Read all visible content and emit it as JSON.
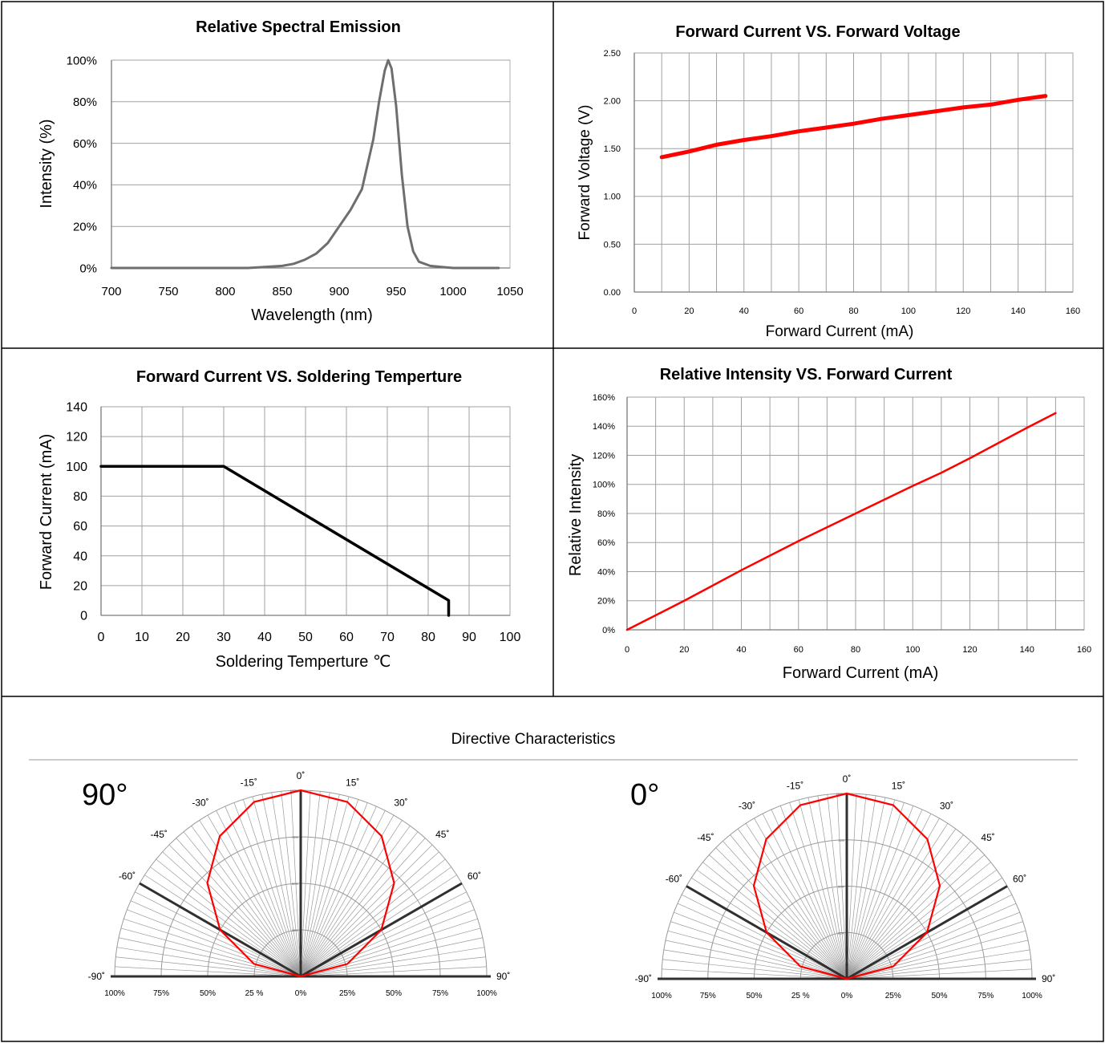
{
  "charts": {
    "spectral": {
      "title": "Relative Spectral Emission",
      "xlabel": "Wavelength (nm)",
      "ylabel": "Intensity (%)",
      "xticks": [
        "700",
        "750",
        "800",
        "850",
        "900",
        "950",
        "1000",
        "1050"
      ],
      "yticks": [
        "0%",
        "20%",
        "40%",
        "60%",
        "80%",
        "100%"
      ],
      "line_color": "#6e6e6e"
    },
    "fv": {
      "title": "Forward Current VS. Forward Voltage",
      "xlabel": "Forward Current (mA)",
      "ylabel": "Forward Voltage (V)",
      "xticks": [
        "0",
        "20",
        "40",
        "60",
        "80",
        "100",
        "120",
        "140",
        "160"
      ],
      "yticks": [
        "0.00",
        "0.50",
        "1.00",
        "1.50",
        "2.00",
        "2.50"
      ],
      "line_color": "#ff0000"
    },
    "solder": {
      "title": "Forward Current  VS. Soldering Temperture",
      "xlabel": "Soldering Temperture ℃",
      "ylabel": "Forward Current (mA)",
      "xticks": [
        "0",
        "10",
        "20",
        "30",
        "40",
        "50",
        "60",
        "70",
        "80",
        "90",
        "100"
      ],
      "yticks": [
        "0",
        "20",
        "40",
        "60",
        "80",
        "100",
        "120",
        "140"
      ],
      "line_color": "#000000"
    },
    "ri": {
      "title": "Relative Intensity VS. Forward Current",
      "xlabel": "Forward Current (mA)",
      "ylabel": "Relative Intensity",
      "xticks": [
        "0",
        "20",
        "40",
        "60",
        "80",
        "100",
        "120",
        "140",
        "160"
      ],
      "yticks": [
        "0%",
        "20%",
        "40%",
        "60%",
        "80%",
        "100%",
        "120%",
        "140%",
        "160%"
      ],
      "line_color": "#ff0000"
    },
    "directive": {
      "title": "Directive Characteristics",
      "left_label": "90°",
      "right_label": "0°",
      "angle_labels": [
        "-90˚",
        "-60˚",
        "-45˚",
        "-30˚",
        "-15˚",
        "0˚",
        "15˚",
        "30˚",
        "45˚",
        "60˚",
        "90˚"
      ],
      "radial_labels": [
        "100%",
        "75%",
        "50%",
        "25 %",
        "0%",
        "25%",
        "50%",
        "75%",
        "100%"
      ],
      "ring_labels": [
        "25%",
        "50%",
        "75%",
        "100%"
      ],
      "pattern_color": "#ff0000"
    }
  },
  "chart_data": [
    {
      "type": "line",
      "title": "Relative Spectral Emission",
      "xlabel": "Wavelength (nm)",
      "ylabel": "Intensity (%)",
      "xlim": [
        700,
        1050
      ],
      "ylim": [
        0,
        100
      ],
      "grid": "horizontal",
      "x": [
        700,
        820,
        850,
        860,
        870,
        880,
        890,
        900,
        910,
        920,
        930,
        935,
        940,
        943,
        946,
        950,
        955,
        960,
        965,
        970,
        980,
        990,
        1000,
        1040
      ],
      "y": [
        0,
        0,
        1,
        2,
        4,
        7,
        12,
        20,
        28,
        38,
        62,
        80,
        95,
        100,
        96,
        78,
        45,
        20,
        8,
        3,
        1,
        0.5,
        0,
        0
      ]
    },
    {
      "type": "line",
      "title": "Forward Current VS. Forward Voltage",
      "xlabel": "Forward Current (mA)",
      "ylabel": "Forward Voltage (V)",
      "xlim": [
        0,
        160
      ],
      "ylim": [
        0,
        2.5
      ],
      "grid": true,
      "x": [
        10,
        20,
        30,
        40,
        50,
        60,
        70,
        80,
        90,
        100,
        110,
        120,
        130,
        140,
        150
      ],
      "y": [
        1.41,
        1.47,
        1.54,
        1.59,
        1.63,
        1.68,
        1.72,
        1.76,
        1.81,
        1.85,
        1.89,
        1.93,
        1.96,
        2.01,
        2.05
      ]
    },
    {
      "type": "line",
      "title": "Forward Current  VS. Soldering Temperture",
      "xlabel": "Soldering Temperture ℃",
      "ylabel": "Forward Current (mA)",
      "xlim": [
        0,
        100
      ],
      "ylim": [
        0,
        140
      ],
      "grid": true,
      "x": [
        0,
        30,
        85,
        85
      ],
      "y": [
        100,
        100,
        10,
        0
      ]
    },
    {
      "type": "line",
      "title": "Relative Intensity VS. Forward Current",
      "xlabel": "Forward Current (mA)",
      "ylabel": "Relative Intensity",
      "xlim": [
        0,
        160
      ],
      "ylim": [
        0,
        160
      ],
      "grid": true,
      "x": [
        0,
        20,
        40,
        60,
        80,
        100,
        110,
        120,
        140,
        150
      ],
      "y": [
        0,
        20,
        41,
        61,
        80,
        99,
        108,
        118,
        139,
        149
      ]
    },
    {
      "type": "polar",
      "title": "Directive Characteristics",
      "label": "90°",
      "angle_range": [
        -90,
        90
      ],
      "angles": [
        -90,
        -75,
        -60,
        -45,
        -30,
        -15,
        0,
        15,
        30,
        45,
        60,
        75,
        90
      ],
      "values": [
        0,
        26,
        50,
        71,
        87,
        97,
        100,
        97,
        87,
        71,
        50,
        26,
        0
      ]
    },
    {
      "type": "polar",
      "title": "Directive Characteristics",
      "label": "0°",
      "angle_range": [
        -90,
        90
      ],
      "angles": [
        -90,
        -75,
        -60,
        -45,
        -30,
        -15,
        0,
        15,
        30,
        45,
        60,
        75,
        90
      ],
      "values": [
        0,
        26,
        50,
        71,
        87,
        97,
        100,
        97,
        87,
        71,
        50,
        26,
        0
      ]
    }
  ]
}
